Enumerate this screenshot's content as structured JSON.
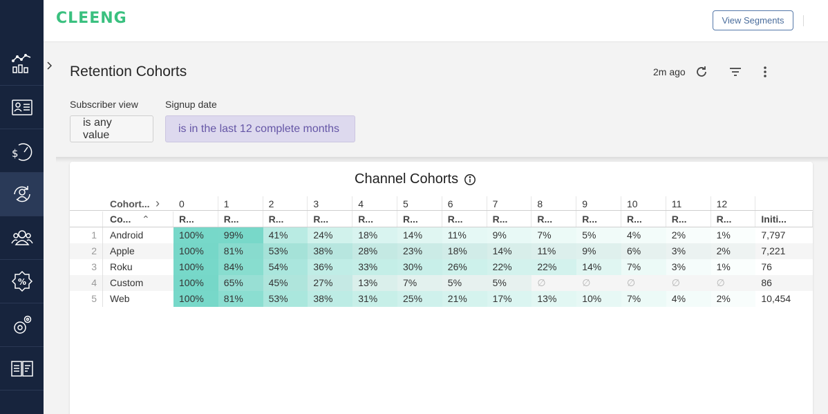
{
  "app": {
    "logo_text": "CLEENG",
    "brand_color": "#3ac07f"
  },
  "sidebar": {
    "items": [
      {
        "icon": "analytics-chart-icon",
        "active": false
      },
      {
        "icon": "subscriber-card-icon",
        "active": false
      },
      {
        "icon": "revenue-gauge-icon",
        "active": false
      },
      {
        "icon": "retention-cycle-icon",
        "active": true
      },
      {
        "icon": "users-group-icon",
        "active": false
      },
      {
        "icon": "discount-badge-icon",
        "active": false
      },
      {
        "icon": "settings-gears-icon",
        "active": false
      },
      {
        "icon": "book-docs-icon",
        "active": false
      }
    ],
    "toggle_icon": "chevron-right-icon"
  },
  "header": {
    "view_segments_label": "View Segments"
  },
  "page": {
    "title": "Retention Cohorts",
    "updated": "2m ago",
    "filters": [
      {
        "label": "Subscriber view",
        "value": "is any value"
      },
      {
        "label": "Signup date",
        "value": "is in the last 12 complete months"
      }
    ]
  },
  "card": {
    "title": "Channel Cohorts",
    "pivot_header": "Cohort...",
    "pivot_periods": [
      "0",
      "1",
      "2",
      "3",
      "4",
      "5",
      "6",
      "7",
      "8",
      "9",
      "10",
      "11",
      "12"
    ],
    "col_header": "Co...",
    "metric_header": "R...",
    "initial_header": "Initi...",
    "null_symbol": "∅",
    "rows": [
      {
        "num": "1",
        "channel": "Android",
        "values": [
          100,
          99,
          41,
          24,
          18,
          14,
          11,
          9,
          7,
          5,
          4,
          2,
          1
        ],
        "initial": "7,797"
      },
      {
        "num": "2",
        "channel": "Apple",
        "values": [
          100,
          81,
          53,
          38,
          28,
          23,
          18,
          14,
          11,
          9,
          6,
          3,
          2
        ],
        "initial": "7,221"
      },
      {
        "num": "3",
        "channel": "Roku",
        "values": [
          100,
          84,
          54,
          36,
          33,
          30,
          26,
          22,
          22,
          14,
          7,
          3,
          1
        ],
        "initial": "76"
      },
      {
        "num": "4",
        "channel": "Custom",
        "values": [
          100,
          65,
          45,
          27,
          13,
          7,
          5,
          5,
          null,
          null,
          null,
          null,
          null
        ],
        "initial": "86"
      },
      {
        "num": "5",
        "channel": "Web",
        "values": [
          100,
          81,
          53,
          38,
          31,
          25,
          21,
          17,
          13,
          10,
          7,
          4,
          2
        ],
        "initial": "10,454"
      }
    ],
    "heat_color": "#5fd1bf"
  }
}
